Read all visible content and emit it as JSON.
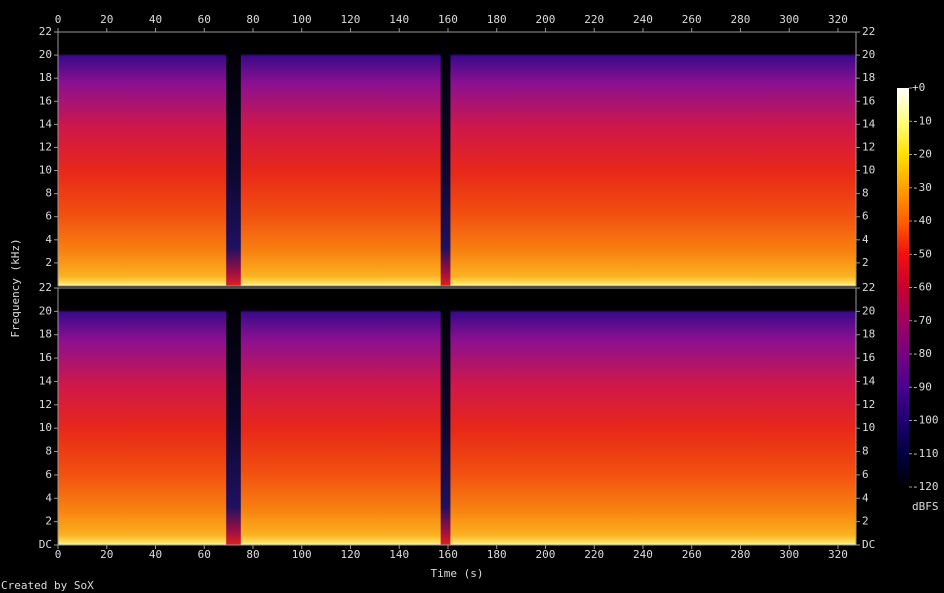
{
  "chart_data": {
    "type": "spectrogram",
    "x_label": "Time (s)",
    "y_label": "Frequency (kHz)",
    "credit": "Created by SoX",
    "xlim": [
      0,
      327.4
    ],
    "xticks": [
      0,
      20,
      40,
      60,
      80,
      100,
      120,
      140,
      160,
      180,
      200,
      220,
      240,
      260,
      280,
      300,
      320
    ],
    "ylim": [
      0,
      22
    ],
    "channels": [
      {
        "yticks": [
          2,
          4,
          6,
          8,
          10,
          12,
          14,
          16,
          18,
          20,
          22
        ]
      },
      {
        "yticks": [
          {
            "value": 0,
            "label": "DC"
          },
          2,
          4,
          6,
          8,
          10,
          12,
          14,
          16,
          18,
          20,
          22
        ]
      }
    ],
    "quiet_intervals": [
      [
        69,
        75
      ],
      [
        157,
        161
      ]
    ],
    "colorbar": {
      "label": "dBFS",
      "lim": [
        -120,
        0
      ],
      "ticks": [
        {
          "value": 0,
          "label": "+0"
        },
        -10,
        -20,
        -30,
        -40,
        -50,
        -60,
        -70,
        -80,
        -90,
        -100,
        -110,
        -120
      ]
    }
  }
}
